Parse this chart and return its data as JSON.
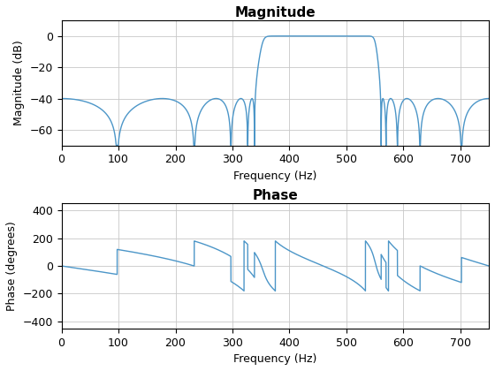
{
  "title_mag": "Magnitude",
  "title_phase": "Phase",
  "xlabel": "Frequency (Hz)",
  "ylabel_mag": "Magnitude (dB)",
  "ylabel_phase": "Phase (degrees)",
  "xlim": [
    0,
    750
  ],
  "ylim_mag": [
    -70,
    10
  ],
  "ylim_phase": [
    -450,
    450
  ],
  "yticks_mag": [
    -60,
    -40,
    -20,
    0
  ],
  "yticks_phase": [
    -400,
    -200,
    0,
    200,
    400
  ],
  "xticks": [
    0,
    100,
    200,
    300,
    400,
    500,
    600,
    700
  ],
  "line_color": "#4c96c8",
  "line_width": 1.0,
  "fs": 1500,
  "background_color": "#ffffff",
  "grid_color": "#c8c8c8",
  "title_fontsize": 11,
  "label_fontsize": 9,
  "tick_fontsize": 9
}
